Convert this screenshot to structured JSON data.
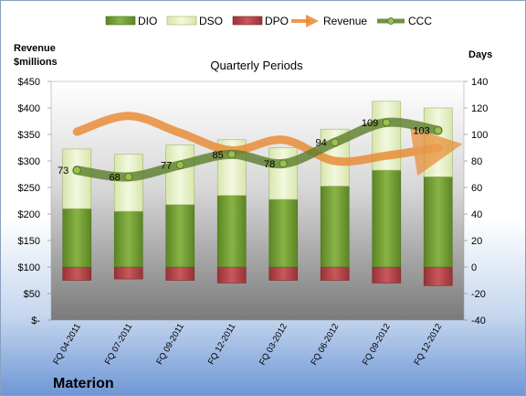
{
  "company": "Materion",
  "legend": [
    {
      "key": "dio",
      "label": "DIO"
    },
    {
      "key": "dso",
      "label": "DSO"
    },
    {
      "key": "dpo",
      "label": "DPO"
    },
    {
      "key": "revenue",
      "label": "Revenue"
    },
    {
      "key": "ccc",
      "label": "CCC"
    }
  ],
  "colors": {
    "dio": "#6f9a2f",
    "dso": "#e6f0c4",
    "dpo": "#b4474a",
    "revenue": "#e9872f",
    "ccc": "#5b7d2a"
  },
  "chart_data": {
    "type": "bar",
    "title": "Quarterly Periods",
    "left_axis_label": "Revenue\n$millions",
    "right_axis_label": "Days",
    "categories": [
      "FQ 04-2011",
      "FQ 07-2011",
      "FQ 09-2011",
      "FQ 12-2011",
      "FQ 03-2012",
      "FQ 06-2012",
      "FQ 09-2012",
      "FQ 12-2012"
    ],
    "left_ticks": [
      "$450",
      "$400",
      "$350",
      "$300",
      "$250",
      "$200",
      "$150",
      "$100",
      "$50",
      "$-"
    ],
    "right_ticks": [
      "140",
      "120",
      "100",
      "80",
      "60",
      "40",
      "20",
      "0",
      "-20",
      "-40"
    ],
    "left_ylim": [
      0,
      450
    ],
    "right_ylim": [
      -40,
      140
    ],
    "series": [
      {
        "name": "DIO",
        "axis": "days",
        "values": [
          44,
          42,
          47,
          54,
          51,
          61,
          73,
          68
        ]
      },
      {
        "name": "DSO",
        "axis": "days",
        "values": [
          45,
          43,
          45,
          42,
          39,
          43,
          52,
          52
        ]
      },
      {
        "name": "DPO",
        "axis": "days",
        "values": [
          -10,
          -9,
          -10,
          -12,
          -10,
          -10,
          -12,
          -14
        ]
      },
      {
        "name": "Revenue",
        "axis": "revenue",
        "values": [
          355,
          385,
          353,
          320,
          340,
          300,
          310,
          325
        ]
      },
      {
        "name": "CCC",
        "axis": "days",
        "values": [
          73,
          68,
          77,
          85,
          78,
          94,
          109,
          103
        ]
      }
    ],
    "ccc_labels": [
      "73",
      "68",
      "77",
      "85",
      "78",
      "94",
      "109",
      "103"
    ],
    "legend_position": "top"
  }
}
